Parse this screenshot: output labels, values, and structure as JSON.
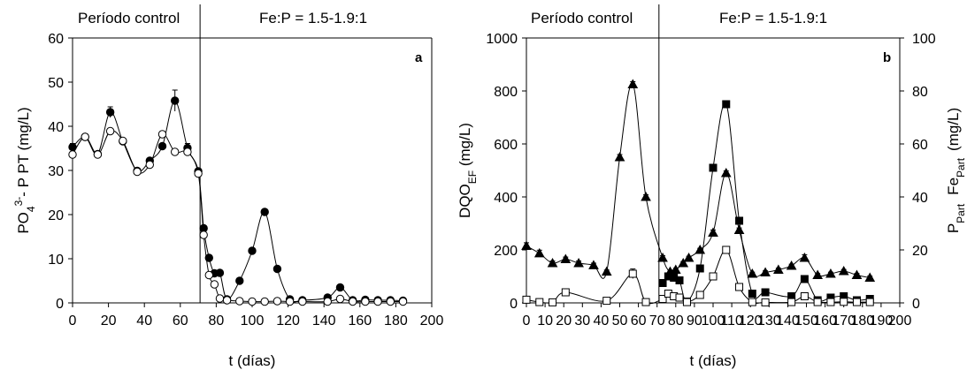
{
  "chart_data": [
    {
      "type": "line",
      "panel": "a",
      "period_labels": [
        "Período control",
        "Fe:P = 1.5-1.9:1"
      ],
      "divider_x": 71,
      "xlabel": "t (días)",
      "ylabel_parts": [
        "PO",
        "4",
        "3-",
        "- P   PT  (mg/L)"
      ],
      "xlim": [
        0,
        200
      ],
      "ylim": [
        0,
        60
      ],
      "xticks": [
        0,
        20,
        40,
        60,
        80,
        100,
        120,
        140,
        160,
        180,
        200
      ],
      "yticks": [
        0,
        10,
        20,
        30,
        40,
        50,
        60
      ],
      "series": [
        {
          "key": "PT",
          "marker": "circle-filled",
          "x": [
            0,
            7,
            14,
            21,
            28,
            36,
            43,
            50,
            57,
            64,
            70,
            73,
            76,
            79,
            82,
            86,
            93,
            100,
            107,
            114,
            121,
            128,
            142,
            149,
            156,
            163,
            170,
            177,
            184
          ],
          "y": [
            35.3,
            37.6,
            33.7,
            43.2,
            36.6,
            29.9,
            32.2,
            35.5,
            45.8,
            35.1,
            29.8,
            16.9,
            10.2,
            6.7,
            6.8,
            0.8,
            5.0,
            11.8,
            20.6,
            7.7,
            0.8,
            0.6,
            1.2,
            3.5,
            0.6,
            0.7,
            0.6,
            0.6,
            0.5
          ],
          "err": [
            0.8,
            0.6,
            0.6,
            1.2,
            0.5,
            0.6,
            0.6,
            0.5,
            2.4,
            1.0,
            0.6,
            0.5,
            0.4,
            0.4,
            0.4,
            0.2,
            0.3,
            0.4,
            0.5,
            0.4,
            0.2,
            0.2,
            0.2,
            0.3,
            0.2,
            0.2,
            0.2,
            0.2,
            0.2
          ]
        },
        {
          "key": "PO4-P",
          "marker": "circle-open",
          "x": [
            0,
            7,
            14,
            21,
            28,
            36,
            43,
            50,
            57,
            64,
            70,
            73,
            76,
            79,
            82,
            86,
            93,
            100,
            107,
            114,
            121,
            128,
            142,
            149,
            156,
            163,
            170,
            177,
            184
          ],
          "y": [
            33.6,
            37.6,
            33.6,
            38.9,
            36.7,
            29.7,
            31.3,
            38.2,
            34.2,
            34.2,
            29.3,
            15.4,
            6.3,
            4.2,
            1.0,
            0.6,
            0.4,
            0.3,
            0.3,
            0.4,
            0.3,
            0.3,
            0.3,
            0.9,
            0.3,
            0.3,
            0.3,
            0.3,
            0.3
          ],
          "err": []
        }
      ]
    },
    {
      "type": "line",
      "panel": "b",
      "period_labels": [
        "Período control",
        "Fe:P = 1.5-1.9:1"
      ],
      "divider_x": 71,
      "xlabel": "t (días)",
      "ylabel_left_parts": [
        "DQO",
        "EF",
        " (mg/L)"
      ],
      "ylabel_right_parts": [
        "P",
        "Part",
        "Fe",
        "Part",
        "(mg/L)"
      ],
      "xlim": [
        0,
        200
      ],
      "ylim_left": [
        0,
        1000
      ],
      "ylim_right": [
        0,
        100
      ],
      "xticks": [
        0,
        10,
        20,
        30,
        40,
        50,
        60,
        70,
        80,
        90,
        100,
        110,
        120,
        130,
        140,
        150,
        160,
        170,
        180,
        190,
        200
      ],
      "yticks_left": [
        0,
        200,
        400,
        600,
        800,
        1000
      ],
      "yticks_right": [
        0,
        20,
        40,
        60,
        80,
        100
      ],
      "series": [
        {
          "key": "DQO_EF",
          "marker": "triangle-filled",
          "axis": "left",
          "x": [
            0,
            7,
            14,
            21,
            28,
            36,
            43,
            50,
            57,
            64,
            73,
            77,
            80,
            84,
            87,
            93,
            100,
            107,
            114,
            121,
            128,
            135,
            142,
            149,
            156,
            163,
            170,
            177,
            184
          ],
          "y": [
            215,
            187,
            150,
            165,
            150,
            142,
            118,
            550,
            825,
            400,
            170,
            118,
            125,
            150,
            170,
            200,
            265,
            490,
            275,
            110,
            115,
            125,
            140,
            170,
            105,
            110,
            120,
            105,
            95
          ],
          "err": [
            12,
            12,
            8,
            8,
            8,
            8,
            6,
            10,
            10,
            8,
            8,
            6,
            6,
            6,
            6,
            6,
            10,
            8,
            8,
            6,
            6,
            6,
            6,
            12,
            6,
            6,
            6,
            6,
            6
          ]
        },
        {
          "key": "Fe_Part",
          "marker": "square-filled",
          "axis": "right",
          "x": [
            73,
            76,
            79,
            82,
            86,
            93,
            100,
            107,
            114,
            121,
            128,
            142,
            149,
            156,
            163,
            170,
            177,
            184
          ],
          "y": [
            7.5,
            10,
            9.5,
            8.5,
            0.5,
            13,
            51,
            75,
            31,
            3.5,
            4,
            2.5,
            9,
            1,
            2,
            2.5,
            1,
            1.5
          ],
          "err": []
        },
        {
          "key": "P_Part",
          "marker": "square-open",
          "axis": "right",
          "x": [
            0,
            7,
            14,
            21,
            43,
            57,
            64,
            73,
            76,
            79,
            82,
            86,
            93,
            100,
            107,
            114,
            121,
            128,
            142,
            149,
            156,
            163,
            170,
            177,
            184
          ],
          "y": [
            1.2,
            0.3,
            0.2,
            4,
            0.8,
            11,
            0.3,
            1.5,
            3.5,
            2.5,
            2,
            0.3,
            3,
            10,
            20,
            6,
            0.3,
            0.2,
            0.3,
            2.5,
            0.3,
            0.3,
            0.4,
            0.3,
            0.3
          ],
          "err": [
            0,
            0,
            0,
            0,
            0,
            1.8,
            0,
            0,
            0,
            0,
            0,
            0,
            0,
            0,
            0,
            0,
            0,
            0,
            0,
            0,
            0,
            0,
            0,
            0,
            0
          ]
        }
      ]
    }
  ]
}
